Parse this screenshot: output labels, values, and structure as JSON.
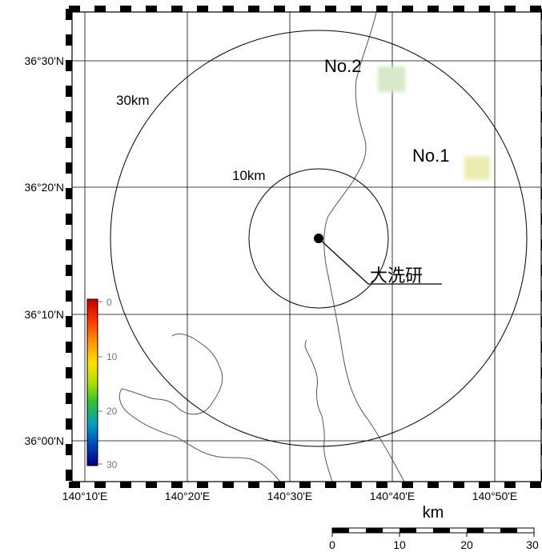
{
  "map": {
    "lat_labels": [
      "36°30'N",
      "36°20'N",
      "36°10'N",
      "36°00'N"
    ],
    "lon_labels": [
      "140°10'E",
      "140°20'E",
      "140°30'E",
      "140°40'E",
      "140°50'E"
    ],
    "rings": [
      "30km",
      "10km"
    ],
    "site": {
      "label": "大洗研"
    },
    "points": [
      {
        "label": "No.2",
        "color": "#d7e9c8"
      },
      {
        "label": "No.1",
        "color": "#ecebb0"
      }
    ],
    "frame_color": "#000000",
    "grid_color": "#000000",
    "coast_color": "#555555"
  },
  "colorbar": {
    "ticks": [
      "0",
      "10",
      "20",
      "30"
    ],
    "colors": [
      "#c00000",
      "#ff3000",
      "#ff9000",
      "#ffe000",
      "#b0e000",
      "#30c030",
      "#00a0c0",
      "#0040c0",
      "#000080"
    ]
  },
  "scalebar": {
    "unit": "km",
    "ticks": [
      "0",
      "10",
      "20",
      "30"
    ]
  }
}
